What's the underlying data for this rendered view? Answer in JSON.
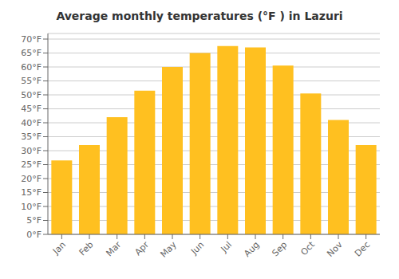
{
  "chart_data": {
    "type": "bar",
    "title": "Average monthly temperatures (°F ) in Lazuri",
    "categories": [
      "Jan",
      "Feb",
      "Mar",
      "Apr",
      "May",
      "Jun",
      "Jul",
      "Aug",
      "Sep",
      "Oct",
      "Nov",
      "Dec"
    ],
    "values": [
      26.5,
      32,
      42,
      51.5,
      60,
      65,
      67.5,
      67,
      60.5,
      50.5,
      41,
      32
    ],
    "color": "#FFC020",
    "ylim": [
      0,
      72
    ],
    "yticks": [
      {
        "value": 0,
        "label": "0°F"
      },
      {
        "value": 5,
        "label": "5°F"
      },
      {
        "value": 10,
        "label": "10°F"
      },
      {
        "value": 15,
        "label": "15°F"
      },
      {
        "value": 20,
        "label": "20°F"
      },
      {
        "value": 25,
        "label": "25°F"
      },
      {
        "value": 30,
        "label": "30°F"
      },
      {
        "value": 35,
        "label": "35°F"
      },
      {
        "value": 40,
        "label": "40°F"
      },
      {
        "value": 45,
        "label": "45°F"
      },
      {
        "value": 50,
        "label": "50°F"
      },
      {
        "value": 55,
        "label": "55°F"
      },
      {
        "value": 60,
        "label": "60°F"
      },
      {
        "value": 65,
        "label": "65°F"
      },
      {
        "value": 70,
        "label": "70°F"
      }
    ],
    "grid": true
  }
}
